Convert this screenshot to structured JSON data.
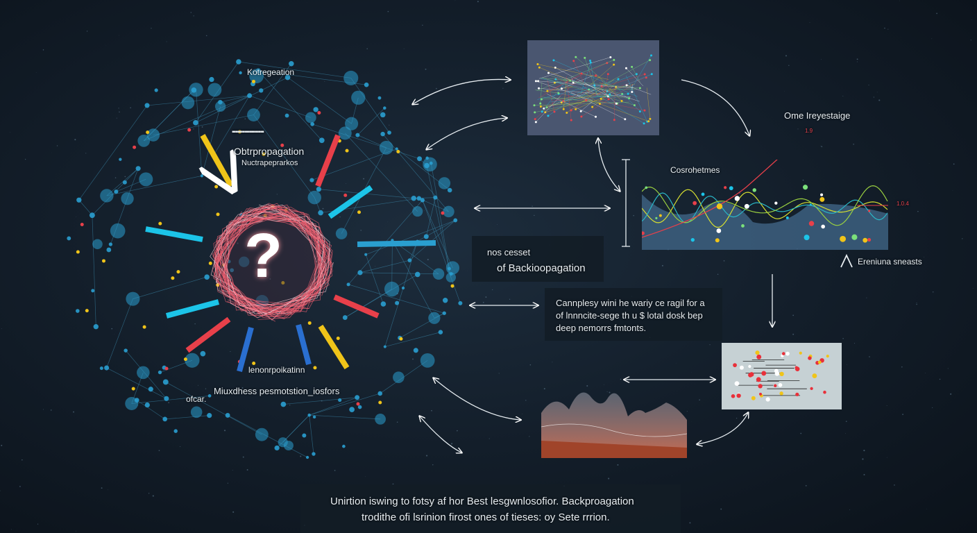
{
  "network_labels": {
    "top": "Kotregeation",
    "dashes": "▪▪▪▪▪▪▪▪▪▪▪▪▪▪▪▪▪▪",
    "upper_title": "Obtrpropagation",
    "upper_sub": "Nuctrapeprarkos",
    "lower_title": "lenonrpoikatinn",
    "lower_sub": "Miuxdhess pesmotstion_iosfors",
    "lower_left": "ofcar.",
    "center_symbol": "?"
  },
  "box_backprop": {
    "line1": "nos cesset",
    "line2": "of Backioopagation"
  },
  "box_complexity": {
    "line1": "Cannplesy wini he wariy ce ragil for a",
    "line2": "of lnnncite-sege th u $ lotal dosk bep",
    "line3": "deep nemorrs fmtonts."
  },
  "wave_chart": {
    "title": "Ome Ireyestaige",
    "series_label": "Cosrohetmes",
    "marker_top": "1.9",
    "marker_right": "1.0.4",
    "footer": "Ereniuna sneasts"
  },
  "caption": {
    "line1": "Unirtion iswing to fotsy af hor Best lesgwnlosofior. Backproagation",
    "line2": "trodithe ofi lsrinion firost ones of tieses: oy Sete rrrion."
  },
  "colors": {
    "node": "#2a9fd0",
    "edge": "#3a86a8",
    "accent_red": "#e8404a",
    "accent_yellow": "#f0c419",
    "accent_cyan": "#1cc4e8",
    "accent_blue": "#2a6fd0"
  }
}
